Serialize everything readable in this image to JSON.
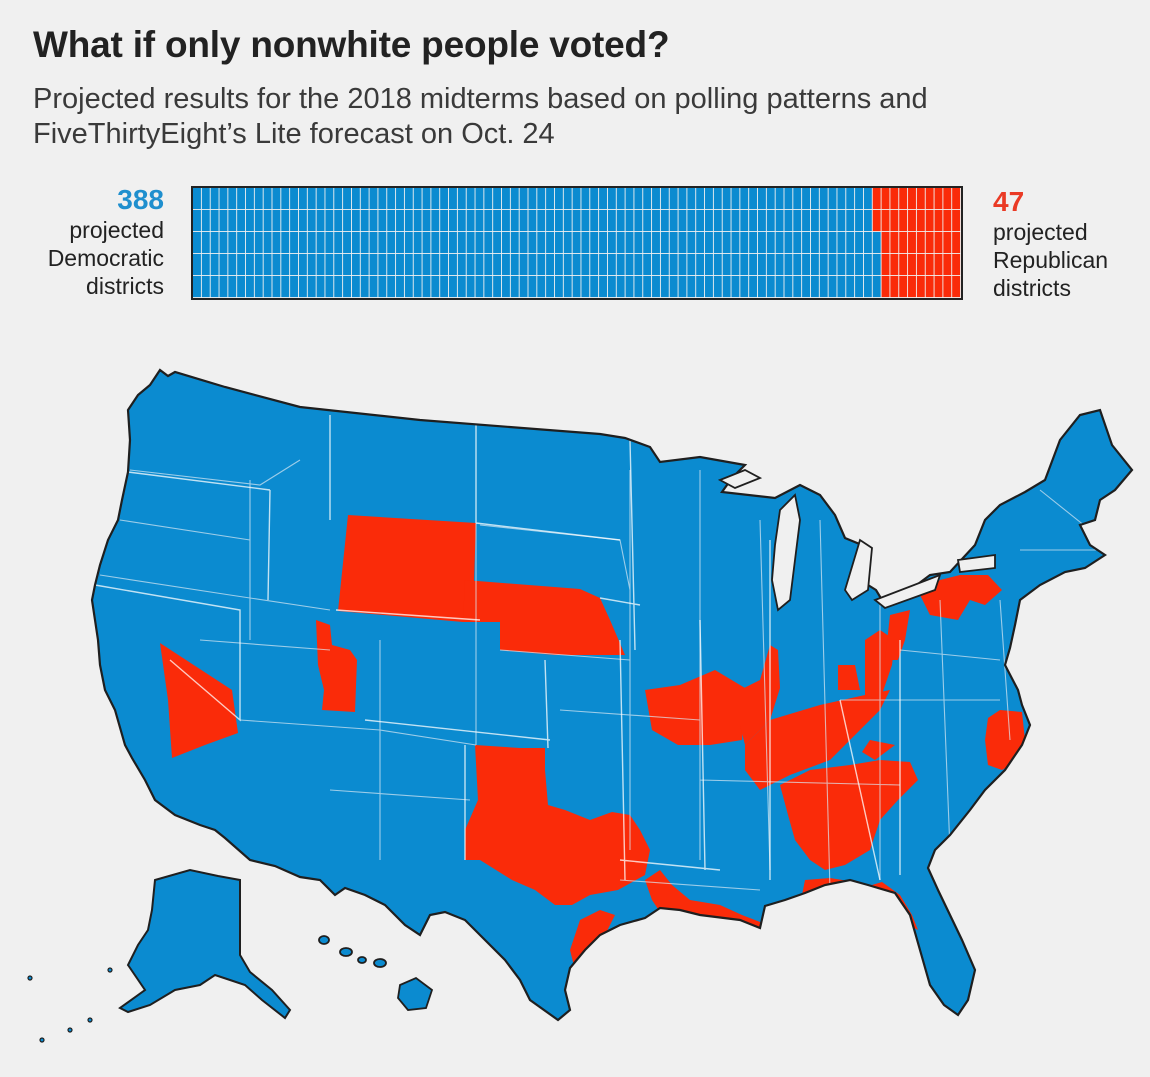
{
  "header": {
    "title": "What if only nonwhite people voted?",
    "subtitle": "Projected results for the 2018 midterms based on polling patterns and FiveThirtyEight’s Lite forecast on Oct. 24"
  },
  "legend": {
    "democratic": {
      "count": "388",
      "label": "projected Democratic districts"
    },
    "republican": {
      "count": "47",
      "label": "projected Republican districts"
    }
  },
  "colors": {
    "democratic": "#0b8bd0",
    "republican": "#fa2b09",
    "background": "#f0f0f0",
    "outline": "#1f1f1f"
  },
  "waffle": {
    "total_districts": 435,
    "democratic_districts": 388,
    "republican_districts": 47,
    "rows": 5
  },
  "map": {
    "regions_shown": [
      "contiguous-us",
      "alaska",
      "hawaii"
    ],
    "republican_areas": [
      "wyoming",
      "nebraska",
      "nevada-east",
      "utah-district",
      "missouri-south",
      "illinois-south",
      "indiana",
      "ohio",
      "kentucky",
      "tennessee",
      "west-texas",
      "east-texas",
      "louisiana",
      "mississippi-gulf",
      "alabama",
      "georgia-north",
      "florida-panhandle",
      "north-carolina-east",
      "pennsylvania"
    ]
  }
}
